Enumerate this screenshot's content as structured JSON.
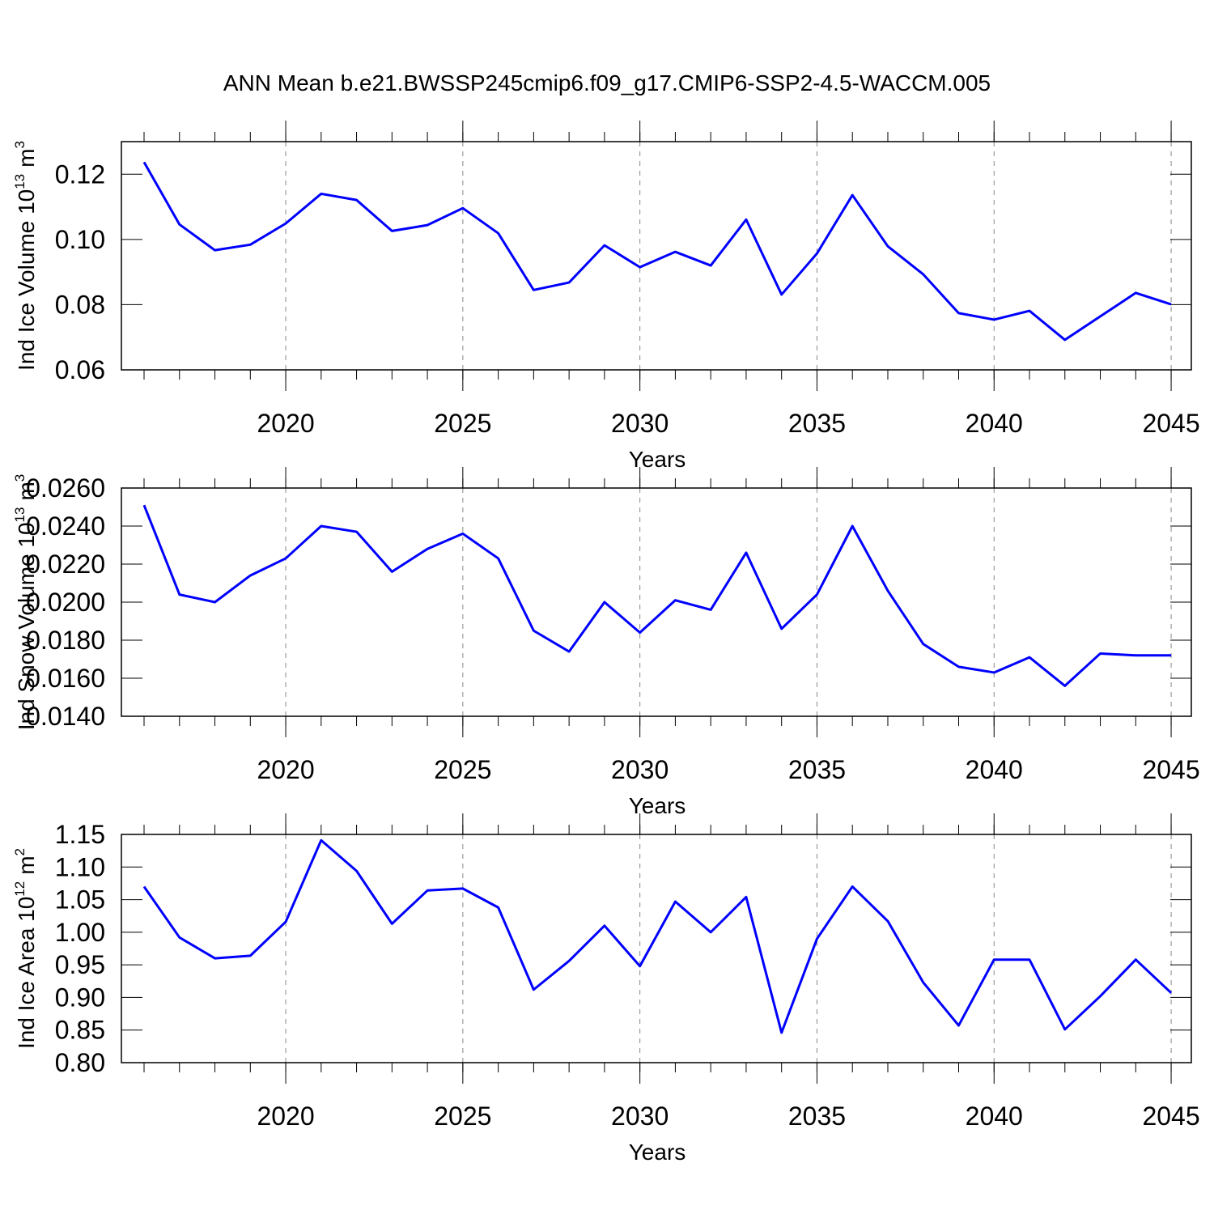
{
  "chart_data": [
    {
      "type": "line",
      "title": "ANN Mean b.e21.BWSSP245cmip6.f09_g17.CMIP6-SSP2-4.5-WACCM.005",
      "x": [
        2016,
        2017,
        2018,
        2019,
        2020,
        2021,
        2022,
        2023,
        2024,
        2025,
        2026,
        2027,
        2028,
        2029,
        2030,
        2031,
        2032,
        2033,
        2034,
        2035,
        2036,
        2037,
        2038,
        2039,
        2040,
        2041,
        2042,
        2043,
        2044,
        2045
      ],
      "xlim": [
        2015.36,
        2045.57
      ],
      "xticks": [
        2020,
        2025,
        2030,
        2035,
        2040,
        2045
      ],
      "xlabel": "Years",
      "ylabel_parts": [
        "Ind Ice Volume 10",
        "13",
        "m",
        "3"
      ],
      "ylim": [
        0.06,
        0.13
      ],
      "yticks": [
        0.06,
        0.08,
        {
          "value": 0.1,
          "label": "0.10"
        },
        0.12
      ],
      "grid": true,
      "series": [
        {
          "color": "#0000ff",
          "values": [
            0.1237,
            0.1046,
            0.0967,
            0.0984,
            0.1049,
            0.114,
            0.1121,
            0.1026,
            0.1044,
            0.1096,
            0.1019,
            0.0845,
            0.0868,
            0.0982,
            0.0915,
            0.0962,
            0.092,
            0.1061,
            0.0831,
            0.0957,
            0.1136,
            0.0979,
            0.0893,
            0.0774,
            0.0754,
            0.0781,
            0.0692,
            0.0764,
            0.0836,
            0.0801
          ]
        }
      ]
    },
    {
      "type": "line",
      "x": [
        2016,
        2017,
        2018,
        2019,
        2020,
        2021,
        2022,
        2023,
        2024,
        2025,
        2026,
        2027,
        2028,
        2029,
        2030,
        2031,
        2032,
        2033,
        2034,
        2035,
        2036,
        2037,
        2038,
        2039,
        2040,
        2041,
        2042,
        2043,
        2044,
        2045
      ],
      "xlim": [
        2015.36,
        2045.57
      ],
      "xticks": [
        2020,
        2025,
        2030,
        2035,
        2040,
        2045
      ],
      "xlabel": "Years",
      "ylabel_parts": [
        "Ind Snow Volume 10",
        "13",
        "m",
        "3"
      ],
      "ylim": [
        0.014,
        0.026
      ],
      "yticks": [
        {
          "value": 0.014,
          "label": "0.0140"
        },
        {
          "value": 0.016,
          "label": "0.0160"
        },
        {
          "value": 0.018,
          "label": "0.0180"
        },
        {
          "value": 0.02,
          "label": "0.0200"
        },
        {
          "value": 0.022,
          "label": "0.0220"
        },
        {
          "value": 0.024,
          "label": "0.0240"
        },
        {
          "value": 0.026,
          "label": "0.0260"
        }
      ],
      "grid": true,
      "series": [
        {
          "color": "#0000ff",
          "values": [
            0.0251,
            0.0204,
            0.02,
            0.0214,
            0.0223,
            0.024,
            0.0237,
            0.0216,
            0.0228,
            0.0236,
            0.0223,
            0.0185,
            0.0174,
            0.02,
            0.0184,
            0.0201,
            0.0196,
            0.0226,
            0.0186,
            0.0204,
            0.024,
            0.0206,
            0.0178,
            0.0166,
            0.0163,
            0.0171,
            0.0156,
            0.0173,
            0.0172,
            0.0172
          ]
        }
      ]
    },
    {
      "type": "line",
      "x": [
        2016,
        2017,
        2018,
        2019,
        2020,
        2021,
        2022,
        2023,
        2024,
        2025,
        2026,
        2027,
        2028,
        2029,
        2030,
        2031,
        2032,
        2033,
        2034,
        2035,
        2036,
        2037,
        2038,
        2039,
        2040,
        2041,
        2042,
        2043,
        2044,
        2045
      ],
      "xlim": [
        2015.36,
        2045.57
      ],
      "xticks": [
        2020,
        2025,
        2030,
        2035,
        2040,
        2045
      ],
      "xlabel": "Years",
      "ylabel_parts": [
        "Ind Ice Area 10",
        "12",
        "m",
        "2"
      ],
      "ylim": [
        0.8,
        1.15
      ],
      "yticks": [
        {
          "value": 0.8,
          "label": "0.80"
        },
        0.85,
        {
          "value": 0.9,
          "label": "0.90"
        },
        0.95,
        {
          "value": 1.0,
          "label": "1.00"
        },
        1.05,
        {
          "value": 1.1,
          "label": "1.10"
        },
        1.15
      ],
      "grid": true,
      "series": [
        {
          "color": "#0000ff",
          "values": [
            1.07,
            0.992,
            0.96,
            0.964,
            1.016,
            1.141,
            1.094,
            1.013,
            1.064,
            1.067,
            1.038,
            0.912,
            0.956,
            1.01,
            0.948,
            1.047,
            1.0,
            1.054,
            0.846,
            0.99,
            1.07,
            1.017,
            0.923,
            0.857,
            0.958,
            0.958,
            0.851,
            0.902,
            0.958,
            0.907
          ]
        }
      ]
    }
  ]
}
